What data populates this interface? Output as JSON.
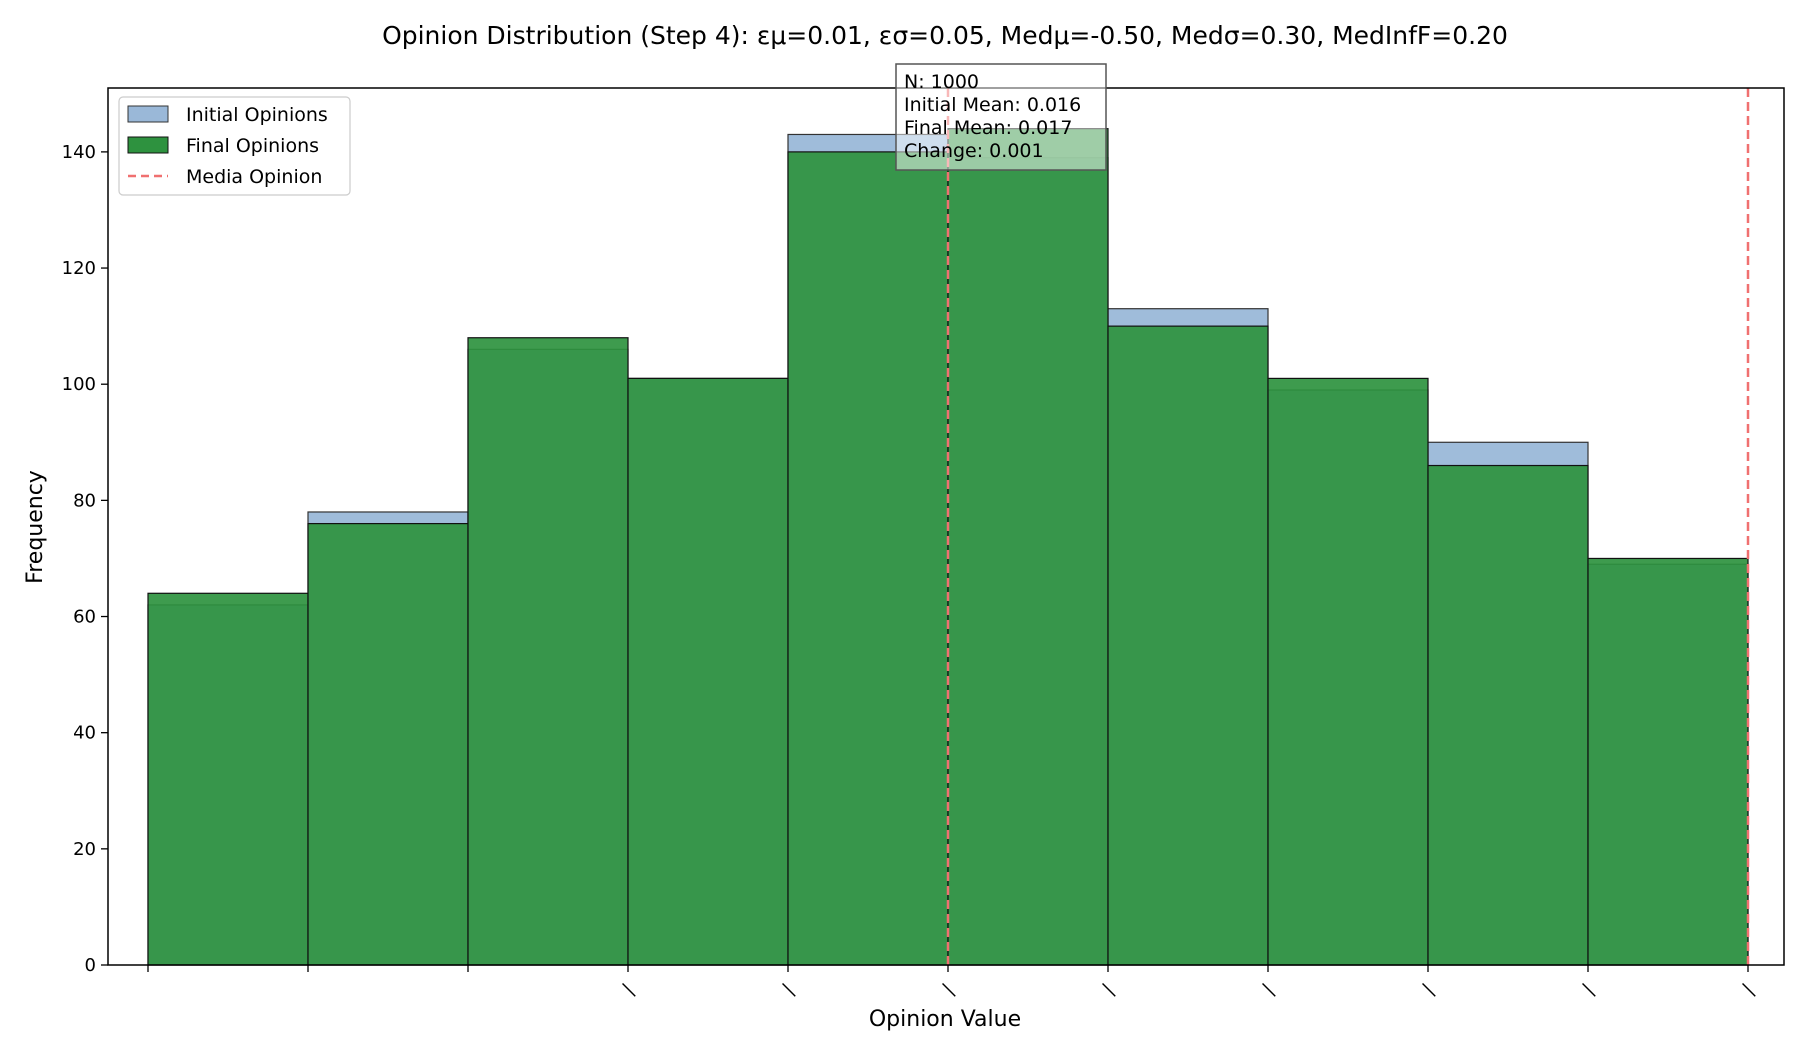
{
  "chart_data": {
    "type": "bar",
    "title": "Opinion Distribution (Step 4): εμ=0.01, εσ=0.05, Medμ=-0.50, Medσ=0.30, MedInfF=0.20",
    "xlabel": "Opinion Value",
    "ylabel": "Frequency",
    "ylim": [
      0,
      151
    ],
    "yticks": [
      0,
      20,
      40,
      60,
      80,
      100,
      120,
      140
    ],
    "x_tick_labels": [
      "",
      "",
      "",
      "|",
      "|",
      "|",
      "|",
      "|",
      "|",
      "|",
      "|"
    ],
    "bin_count": 10,
    "series": [
      {
        "name": "Initial Opinions",
        "color": "#9ab8d8",
        "values": [
          62,
          78,
          106,
          101,
          143,
          139,
          113,
          99,
          90,
          69
        ]
      },
      {
        "name": "Final Opinions",
        "color": "#2e923f",
        "values": [
          64,
          76,
          108,
          101,
          140,
          144,
          110,
          101,
          86,
          70
        ]
      }
    ],
    "media_line": {
      "name": "Media Opinion",
      "color": "#f07070",
      "bin_edges": [
        5,
        10
      ]
    },
    "legend_position": "top-left",
    "stats_box": [
      "N: 1000",
      "Initial Mean: 0.016",
      "Final Mean: 0.017",
      "Change: 0.001"
    ],
    "grid": false
  }
}
